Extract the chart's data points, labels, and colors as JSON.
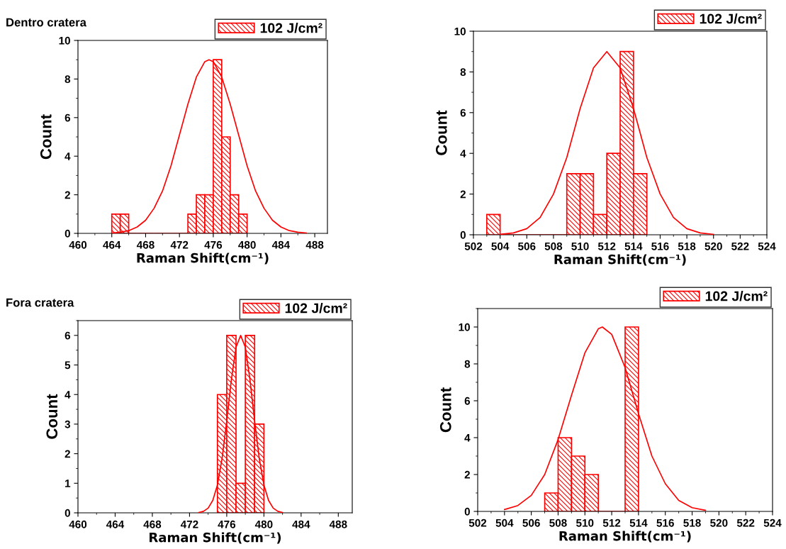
{
  "chart_data": [
    {
      "type": "histogram",
      "title": "Dentro cratera",
      "xlabel": "Raman Shift(cm⁻¹)",
      "ylabel": "Count",
      "xlim": [
        460,
        489.5
      ],
      "xticks": [
        460,
        464,
        468,
        472,
        476,
        480,
        484,
        488
      ],
      "ylim": [
        0,
        10
      ],
      "yticks": [
        0,
        2,
        4,
        6,
        8,
        10
      ],
      "grid": false,
      "legend": "top right",
      "series": [
        {
          "name": "102 J/cm²",
          "color": "#ff0000",
          "bins": [
            464,
            465,
            466,
            467,
            468,
            469,
            470,
            471,
            472,
            473,
            474,
            475,
            476,
            477,
            478,
            479,
            480
          ],
          "values": [
            1,
            1,
            0,
            0,
            0,
            0,
            0,
            0,
            0,
            1,
            2,
            2,
            9,
            5,
            2,
            1
          ]
        },
        {
          "type": "line",
          "color": "#ff0000",
          "x": [
            464,
            465,
            466,
            467,
            468,
            469,
            470,
            471,
            472,
            473,
            474,
            475,
            475.5,
            476,
            477,
            478,
            479,
            480,
            481,
            482,
            483,
            484,
            485,
            486,
            487
          ],
          "values": [
            0.02,
            0.06,
            0.14,
            0.33,
            0.68,
            1.3,
            2.2,
            3.5,
            5.1,
            6.7,
            8.1,
            8.9,
            9,
            8.9,
            8.1,
            6.7,
            5.1,
            3.5,
            2.2,
            1.3,
            0.68,
            0.33,
            0.14,
            0.06,
            0.02
          ]
        }
      ]
    },
    {
      "type": "histogram",
      "xlabel": "Raman Shift(cm⁻¹)",
      "ylabel": "Count",
      "xlim": [
        502,
        524
      ],
      "xticks": [
        502,
        504,
        506,
        508,
        510,
        512,
        514,
        516,
        518,
        520,
        522,
        524
      ],
      "ylim": [
        0,
        10
      ],
      "yticks": [
        0,
        2,
        4,
        6,
        8,
        10
      ],
      "grid": false,
      "legend": "top right",
      "series": [
        {
          "name": "102 J/cm²",
          "color": "#ff0000",
          "bins": [
            503,
            504,
            505,
            506,
            507,
            508,
            509,
            510,
            511,
            512,
            513,
            514,
            515
          ],
          "values": [
            1,
            0,
            0,
            0,
            0,
            0,
            3,
            3,
            1,
            4,
            9,
            3
          ]
        },
        {
          "type": "line",
          "color": "#ff0000",
          "x": [
            504,
            505,
            506,
            507,
            508,
            509,
            510,
            511,
            512,
            513,
            514,
            515,
            516,
            517,
            518,
            519,
            520
          ],
          "values": [
            0.02,
            0.09,
            0.3,
            0.85,
            2.0,
            3.8,
            6.2,
            8.2,
            9,
            8.2,
            6.2,
            3.8,
            2.0,
            0.85,
            0.3,
            0.09,
            0.02
          ]
        }
      ]
    },
    {
      "type": "histogram",
      "title": "Fora cratera",
      "xlabel": "Raman Shift(cm⁻¹)",
      "ylabel": "Count",
      "xlim": [
        460,
        489.5
      ],
      "xticks": [
        460,
        464,
        468,
        472,
        476,
        480,
        484,
        488
      ],
      "ylim": [
        0,
        6.5
      ],
      "yticks": [
        0,
        1,
        2,
        3,
        4,
        5,
        6
      ],
      "grid": false,
      "legend": "top right",
      "series": [
        {
          "name": "102 J/cm²",
          "color": "#ff0000",
          "bins": [
            475,
            476,
            477,
            478,
            479,
            480
          ],
          "values": [
            4,
            6,
            1,
            6,
            3
          ]
        },
        {
          "type": "line",
          "color": "#ff0000",
          "x": [
            473,
            473.5,
            474,
            474.5,
            475,
            475.5,
            476,
            476.5,
            477,
            477.5,
            478,
            478.5,
            479,
            479.5,
            480,
            480.5,
            481,
            481.5,
            482
          ],
          "values": [
            0.01,
            0.05,
            0.16,
            0.42,
            0.94,
            1.84,
            3.1,
            4.5,
            5.6,
            6,
            5.6,
            4.5,
            3.1,
            1.84,
            0.94,
            0.42,
            0.16,
            0.05,
            0.01
          ]
        }
      ]
    },
    {
      "type": "histogram",
      "xlabel": "Raman Shift(cm⁻¹)",
      "ylabel": "Count",
      "xlim": [
        502,
        524
      ],
      "xticks": [
        502,
        504,
        506,
        508,
        510,
        512,
        514,
        516,
        518,
        520,
        522,
        524
      ],
      "ylim": [
        0,
        11
      ],
      "yticks": [
        0,
        2,
        4,
        6,
        8,
        10
      ],
      "grid": false,
      "legend": "top right",
      "series": [
        {
          "name": "102 J/cm²",
          "color": "#ff0000",
          "bins": [
            507,
            508,
            509,
            510,
            511,
            512,
            513,
            514
          ],
          "values": [
            1,
            4,
            3,
            2,
            0,
            0,
            10
          ]
        },
        {
          "type": "line",
          "color": "#ff0000",
          "x": [
            504,
            505,
            506,
            507,
            508,
            509,
            510,
            511,
            511.3,
            512,
            513,
            514,
            515,
            516,
            517,
            518,
            519
          ],
          "values": [
            0.1,
            0.32,
            0.87,
            2.0,
            3.9,
            6.3,
            8.6,
            9.9,
            10,
            9.6,
            7.8,
            5.3,
            3.0,
            1.5,
            0.6,
            0.2,
            0.06
          ]
        }
      ]
    }
  ]
}
